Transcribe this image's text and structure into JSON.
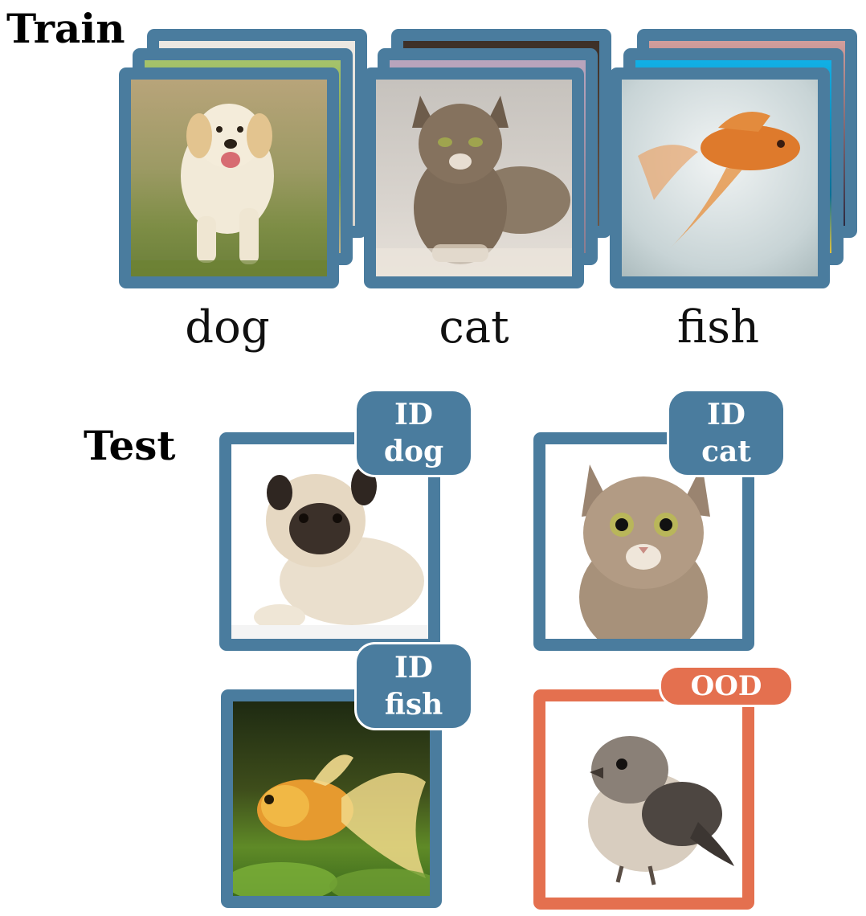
{
  "title": {
    "train": "Train",
    "test": "Test"
  },
  "train": {
    "classes": [
      {
        "label": "dog",
        "photo": "golden-retriever-puppy-running-photo",
        "stack_colors": [
          "#e9e4de",
          "#7ea353",
          "#e7efe2"
        ]
      },
      {
        "label": "cat",
        "photo": "tabby-cat-lying-photo",
        "stack_colors": [
          "#4a3a30",
          "#a78fa6",
          "#d8cfc8"
        ]
      },
      {
        "label": "fish",
        "photo": "goldfish-photo",
        "stack_colors": [
          "#d39a9a",
          "#12b3e6",
          "#e7efe2"
        ]
      }
    ]
  },
  "test": {
    "items": [
      {
        "photo": "pug-lying-photo",
        "tag_top": "ID",
        "tag_bottom": "dog"
      },
      {
        "photo": "tabby-cat-face-photo",
        "tag_top": "ID",
        "tag_bottom": "cat"
      },
      {
        "photo": "goldfish-aquarium-photo",
        "tag_top": "ID",
        "tag_bottom": "fish"
      },
      {
        "photo": "sparrow-bird-photo",
        "tag": "OOD"
      }
    ]
  },
  "colors": {
    "id_frame": "#4a7c9e",
    "ood_frame": "#e4704f"
  }
}
